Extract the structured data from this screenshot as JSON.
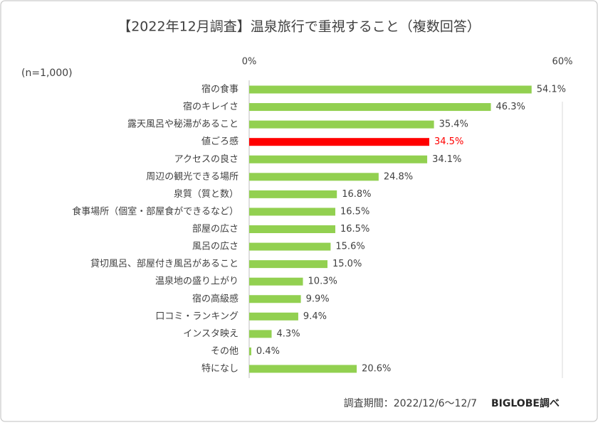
{
  "chart_data": {
    "type": "bar",
    "orientation": "horizontal",
    "title": "【2022年12月調査】温泉旅行で重視すること（複数回答）",
    "annotations": [
      "(n=1,000)",
      "調査期間：2022/12/6～12/7",
      "BIGLOBE調べ"
    ],
    "categories": [
      "宿の食事",
      "宿のキレイさ",
      "露天風呂や秘湯があること",
      "値ごろ感",
      "アクセスの良さ",
      "周辺の観光できる場所",
      "泉質（質と数）",
      "食事場所（個室・部屋食ができるなど）",
      "部屋の広さ",
      "風呂の広さ",
      "貸切風呂、部屋付き風呂があること",
      "温泉地の盛り上がり",
      "宿の高級感",
      "口コミ・ランキング",
      "インスタ映え",
      "その他",
      "特になし"
    ],
    "values": [
      54.1,
      46.3,
      35.4,
      34.5,
      34.1,
      24.8,
      16.8,
      16.5,
      16.5,
      15.6,
      15.0,
      10.3,
      9.9,
      9.4,
      4.3,
      0.4,
      20.6
    ],
    "value_labels": [
      "54.1%",
      "46.3%",
      "35.4%",
      "34.5%",
      "34.1%",
      "24.8%",
      "16.8%",
      "16.5%",
      "16.5%",
      "15.6%",
      "15.0%",
      "10.3%",
      "9.9%",
      "9.4%",
      "4.3%",
      "0.4%",
      "20.6%"
    ],
    "colors": [
      "#92d050",
      "#92d050",
      "#92d050",
      "#ff0000",
      "#92d050",
      "#92d050",
      "#92d050",
      "#92d050",
      "#92d050",
      "#92d050",
      "#92d050",
      "#92d050",
      "#92d050",
      "#92d050",
      "#92d050",
      "#92d050",
      "#92d050"
    ],
    "value_label_colors": [
      "#404040",
      "#404040",
      "#404040",
      "#ff0000",
      "#404040",
      "#404040",
      "#404040",
      "#404040",
      "#404040",
      "#404040",
      "#404040",
      "#404040",
      "#404040",
      "#404040",
      "#404040",
      "#404040",
      "#404040"
    ],
    "xlim": [
      0,
      60
    ],
    "xticks": [
      {
        "value": 0,
        "label": "0%"
      },
      {
        "value": 60,
        "label": "60%"
      }
    ],
    "grid": true
  }
}
